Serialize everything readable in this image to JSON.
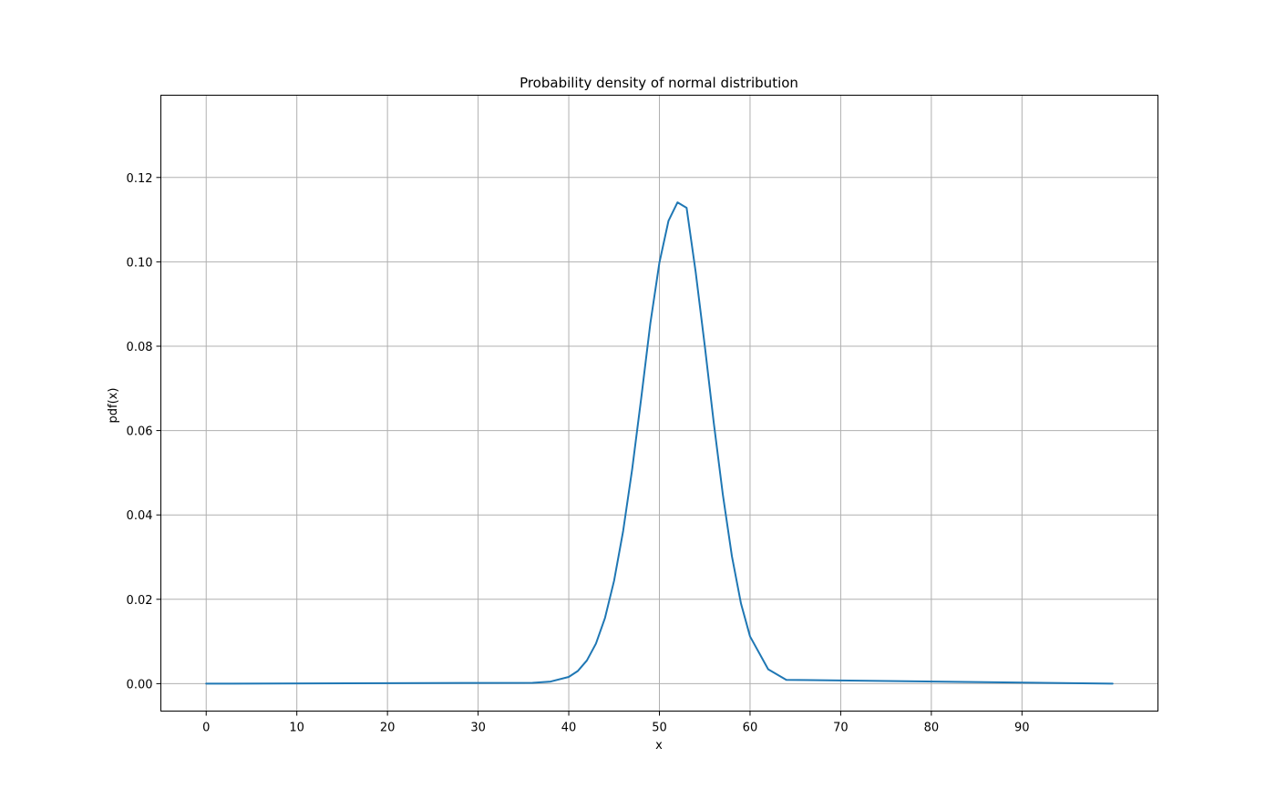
{
  "chart_data": {
    "type": "line",
    "title": "Probability density of normal distribution",
    "xlabel": "x",
    "ylabel": "pdf(x)",
    "xlim": [
      -5,
      105
    ],
    "ylim": [
      -0.0065,
      0.1395
    ],
    "xticks": [
      0,
      10,
      20,
      30,
      40,
      50,
      60,
      70,
      80,
      90
    ],
    "xtick_labels": [
      "0",
      "10",
      "20",
      "30",
      "40",
      "50",
      "60",
      "70",
      "80",
      "90"
    ],
    "yticks": [
      0,
      0.02,
      0.04,
      0.06,
      0.08,
      0.1,
      0.12
    ],
    "ytick_labels": [
      "0.00",
      "0.02",
      "0.04",
      "0.06",
      "0.08",
      "0.10",
      "0.12"
    ],
    "grid": true,
    "line_color": "#1f77b4",
    "series": [
      {
        "x": [
          0,
          36,
          38,
          40,
          41,
          42,
          43,
          44,
          45,
          46,
          47,
          48,
          49,
          50,
          51,
          52,
          53,
          54,
          55,
          56,
          57,
          58,
          59,
          60,
          62,
          64,
          100
        ],
        "y": [
          0.0,
          0.0002,
          0.0005,
          0.0016,
          0.003,
          0.0055,
          0.0095,
          0.0156,
          0.0244,
          0.0362,
          0.0509,
          0.0678,
          0.0854,
          0.0998,
          0.1097,
          0.1141,
          0.1128,
          0.0976,
          0.0802,
          0.0618,
          0.0448,
          0.0302,
          0.019,
          0.0112,
          0.0034,
          0.0009,
          0.0
        ]
      }
    ]
  }
}
